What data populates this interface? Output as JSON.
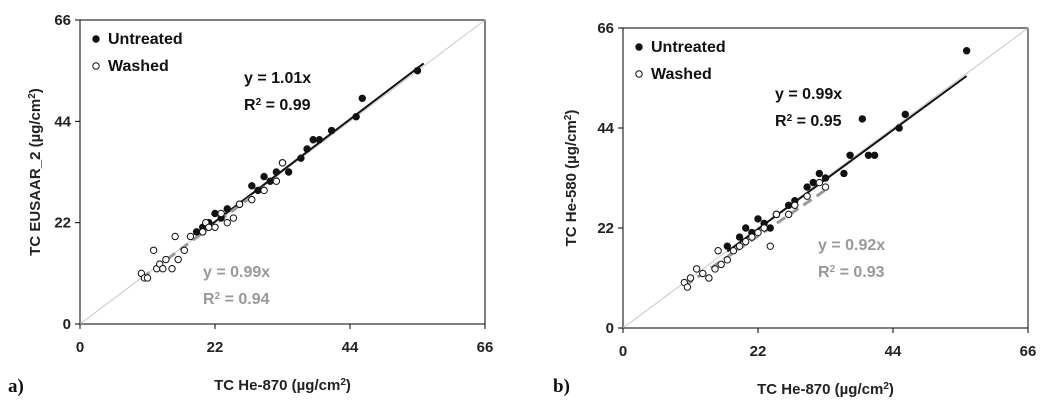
{
  "chart_data": [
    {
      "type": "scatter",
      "panel_label": "a)",
      "xlabel": "TC He-870 (µg/cm²)",
      "ylabel": "TC EUSAAR_2 (µg/cm²)",
      "xlim": [
        0,
        66
      ],
      "ylim": [
        0,
        66
      ],
      "xticks": [
        "0",
        "22",
        "44",
        "66"
      ],
      "yticks": [
        "0",
        "22",
        "44",
        "66"
      ],
      "legend": [
        "Untreated",
        "Washed"
      ],
      "legend_position": "top-left",
      "one_to_one_line": true,
      "fits": [
        {
          "series": "Untreated",
          "slope": 1.01,
          "line1": "y = 1.01x",
          "line2": "R² = 0.99",
          "color": "#111111",
          "x_range": [
            19,
            56
          ]
        },
        {
          "series": "Washed",
          "slope": 0.99,
          "line1": "y = 0.99x",
          "line2": "R² = 0.94",
          "color": "#999999",
          "x_range": [
            10,
            33
          ]
        }
      ],
      "series": [
        {
          "name": "Untreated",
          "marker": "filled",
          "color": "#111111",
          "points": [
            [
              19,
              20
            ],
            [
              20,
              21
            ],
            [
              21,
              22
            ],
            [
              22,
              24
            ],
            [
              23,
              23
            ],
            [
              24,
              25
            ],
            [
              26,
              26
            ],
            [
              28,
              30
            ],
            [
              29,
              29
            ],
            [
              30,
              32
            ],
            [
              31,
              31
            ],
            [
              32,
              33
            ],
            [
              33,
              35
            ],
            [
              34,
              33
            ],
            [
              36,
              36
            ],
            [
              37,
              38
            ],
            [
              38,
              40
            ],
            [
              39,
              40
            ],
            [
              41,
              42
            ],
            [
              45,
              45
            ],
            [
              46,
              49
            ],
            [
              55,
              55
            ]
          ]
        },
        {
          "name": "Washed",
          "marker": "open",
          "color": "#111111",
          "points": [
            [
              10,
              11
            ],
            [
              10.5,
              10
            ],
            [
              11,
              10
            ],
            [
              12,
              16
            ],
            [
              12.5,
              12
            ],
            [
              13,
              13
            ],
            [
              13.5,
              12
            ],
            [
              14,
              14
            ],
            [
              15,
              12
            ],
            [
              15.5,
              19
            ],
            [
              16,
              14
            ],
            [
              17,
              16
            ],
            [
              18,
              19
            ],
            [
              20,
              20
            ],
            [
              20.5,
              22
            ],
            [
              21,
              21
            ],
            [
              22,
              21
            ],
            [
              23,
              24
            ],
            [
              24,
              22
            ],
            [
              25,
              23
            ],
            [
              26,
              26
            ],
            [
              28,
              27
            ],
            [
              30,
              29
            ],
            [
              32,
              31
            ],
            [
              33,
              35
            ]
          ]
        }
      ]
    },
    {
      "type": "scatter",
      "panel_label": "b)",
      "xlabel": "TC He-870 (µg/cm²)",
      "ylabel": "TC He-580 (µg/cm²)",
      "xlim": [
        0,
        66
      ],
      "ylim": [
        0,
        66
      ],
      "xticks": [
        "0",
        "22",
        "44",
        "66"
      ],
      "yticks": [
        "0",
        "22",
        "44",
        "66"
      ],
      "legend": [
        "Untreated",
        "Washed"
      ],
      "legend_position": "top-left",
      "one_to_one_line": true,
      "fits": [
        {
          "series": "Untreated",
          "slope": 0.99,
          "line1": "y = 0.99x",
          "line2": "R² = 0.95",
          "color": "#111111",
          "x_range": [
            17,
            56
          ]
        },
        {
          "series": "Washed",
          "slope": 0.92,
          "line1": "y = 0.92x",
          "line2": "R² = 0.93",
          "color": "#999999",
          "x_range": [
            10,
            33
          ]
        }
      ],
      "series": [
        {
          "name": "Untreated",
          "marker": "filled",
          "color": "#111111",
          "points": [
            [
              17,
              18
            ],
            [
              19,
              20
            ],
            [
              20,
              22
            ],
            [
              21,
              21
            ],
            [
              22,
              24
            ],
            [
              23,
              23
            ],
            [
              24,
              22
            ],
            [
              25,
              25
            ],
            [
              27,
              27
            ],
            [
              28,
              28
            ],
            [
              30,
              31
            ],
            [
              31,
              32
            ],
            [
              32,
              34
            ],
            [
              33,
              33
            ],
            [
              36,
              34
            ],
            [
              37,
              38
            ],
            [
              39,
              46
            ],
            [
              40,
              38
            ],
            [
              41,
              38
            ],
            [
              45,
              44
            ],
            [
              46,
              47
            ],
            [
              56,
              61
            ]
          ]
        },
        {
          "name": "Washed",
          "marker": "open",
          "color": "#111111",
          "points": [
            [
              10,
              10
            ],
            [
              10.5,
              9
            ],
            [
              11,
              11
            ],
            [
              12,
              13
            ],
            [
              13,
              12
            ],
            [
              14,
              11
            ],
            [
              15,
              13
            ],
            [
              15.5,
              17
            ],
            [
              16,
              14
            ],
            [
              17,
              15
            ],
            [
              18,
              17
            ],
            [
              19,
              18
            ],
            [
              20,
              19
            ],
            [
              21,
              20
            ],
            [
              22,
              21
            ],
            [
              23,
              22
            ],
            [
              24,
              18
            ],
            [
              25,
              25
            ],
            [
              27,
              25
            ],
            [
              28,
              27
            ],
            [
              30,
              29
            ],
            [
              32,
              32
            ],
            [
              33,
              31
            ]
          ]
        }
      ]
    }
  ]
}
